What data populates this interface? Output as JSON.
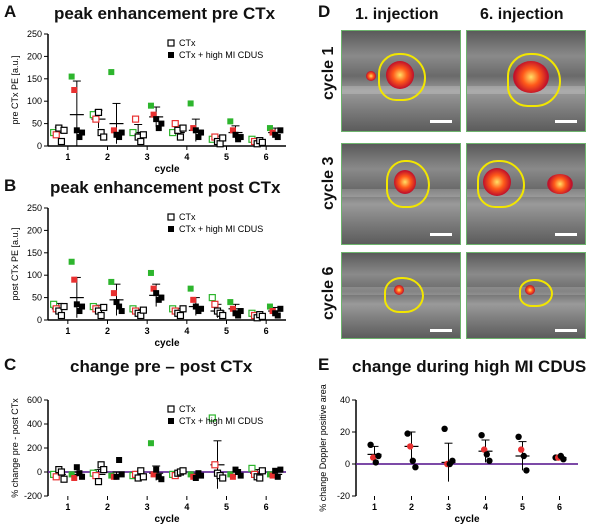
{
  "panels": {
    "A": {
      "letter": "A",
      "title": "peak enhancement pre CTx"
    },
    "B": {
      "letter": "B",
      "title": "peak enhancement post CTx"
    },
    "C": {
      "letter": "C",
      "title": "change pre – post CTx"
    },
    "D": {
      "letter": "D",
      "col1": "1. injection",
      "col2": "6. injection",
      "rows": [
        "cycle 1",
        "cycle 3",
        "cycle 6"
      ]
    },
    "E": {
      "letter": "E",
      "title": "change during high MI CDUS"
    }
  },
  "colors": {
    "green": "#2db52d",
    "red": "#e83030",
    "black": "#000000",
    "outline": "#f2e600"
  },
  "chart_data": [
    {
      "id": "A",
      "type": "scatter",
      "xlabel": "cycle",
      "ylabel": "pre CTx PE [a.u.]",
      "categories": [
        "1",
        "2",
        "3",
        "4",
        "5",
        "6"
      ],
      "ylim": [
        0,
        250
      ],
      "yticks": [
        0,
        50,
        100,
        150,
        200,
        250
      ],
      "legend": [
        "CTx",
        "CTx + high MI CDUS"
      ],
      "series": [
        {
          "name": "CTx",
          "marker": "open-square",
          "points": [
            [
              30,
              25,
              40,
              10,
              35
            ],
            [
              70,
              60,
              75,
              30,
              20
            ],
            [
              30,
              60,
              20,
              10,
              25
            ],
            [
              30,
              50,
              35,
              20,
              40
            ],
            [
              15,
              20,
              10,
              5,
              18
            ],
            [
              15,
              10,
              5,
              12,
              8
            ]
          ],
          "mean": [
            30,
            60,
            30,
            30,
            15,
            12
          ],
          "sd": [
            12,
            20,
            18,
            15,
            7,
            5
          ]
        },
        {
          "name": "CTx + high MI CDUS",
          "marker": "filled-square",
          "points": [
            [
              155,
              125,
              35,
              20,
              30
            ],
            [
              165,
              35,
              25,
              20,
              30
            ],
            [
              90,
              70,
              60,
              40,
              50
            ],
            [
              95,
              40,
              35,
              20,
              30
            ],
            [
              55,
              35,
              25,
              15,
              20
            ],
            [
              40,
              30,
              25,
              20,
              35
            ]
          ],
          "mean": [
            70,
            50,
            65,
            35,
            30,
            30
          ],
          "sd": [
            75,
            45,
            22,
            25,
            15,
            10
          ]
        }
      ]
    },
    {
      "id": "B",
      "type": "scatter",
      "xlabel": "cycle",
      "ylabel": "post CTx PE [a.u.]",
      "categories": [
        "1",
        "2",
        "3",
        "4",
        "5",
        "6"
      ],
      "ylim": [
        0,
        250
      ],
      "yticks": [
        0,
        50,
        100,
        150,
        200,
        250
      ],
      "legend": [
        "CTx",
        "CTx + high MI CDUS"
      ],
      "series": [
        {
          "name": "CTx",
          "marker": "open-square",
          "points": [
            [
              35,
              25,
              20,
              10,
              30
            ],
            [
              30,
              25,
              20,
              10,
              28
            ],
            [
              25,
              20,
              15,
              10,
              22
            ],
            [
              25,
              20,
              15,
              10,
              25
            ],
            [
              50,
              35,
              20,
              15,
              10
            ],
            [
              15,
              10,
              5,
              12,
              8
            ]
          ],
          "mean": [
            25,
            25,
            18,
            20,
            20,
            10
          ],
          "sd": [
            12,
            8,
            6,
            6,
            15,
            4
          ]
        },
        {
          "name": "CTx + high MI CDUS",
          "marker": "filled-square",
          "points": [
            [
              130,
              90,
              35,
              20,
              30
            ],
            [
              85,
              60,
              40,
              30,
              20
            ],
            [
              105,
              70,
              60,
              45,
              50
            ],
            [
              70,
              45,
              30,
              20,
              25
            ],
            [
              40,
              25,
              15,
              10,
              20
            ],
            [
              30,
              20,
              15,
              10,
              25
            ]
          ],
          "mean": [
            50,
            45,
            55,
            30,
            25,
            20
          ],
          "sd": [
            45,
            35,
            25,
            20,
            10,
            8
          ]
        }
      ]
    },
    {
      "id": "C",
      "type": "scatter",
      "xlabel": "cycle",
      "ylabel": "% change pre - post CTx",
      "categories": [
        "1",
        "2",
        "3",
        "4",
        "5",
        "6"
      ],
      "ylim": [
        -200,
        600
      ],
      "yticks": [
        -200,
        0,
        200,
        400,
        600
      ],
      "legend": [
        "CTx",
        "CTx + high MI CDUS"
      ],
      "series": [
        {
          "name": "CTx",
          "marker": "open-square",
          "points": [
            [
              -20,
              -40,
              20,
              0,
              -60
            ],
            [
              -10,
              -30,
              -80,
              60,
              20
            ],
            [
              -30,
              -20,
              -50,
              10,
              -40
            ],
            [
              -20,
              -30,
              -10,
              0,
              10
            ],
            [
              450,
              60,
              -10,
              -30,
              -50
            ],
            [
              30,
              -20,
              -40,
              -50,
              10
            ]
          ],
          "mean": [
            -20,
            -20,
            -20,
            -15,
            60,
            -10
          ],
          "sd": [
            20,
            40,
            25,
            15,
            200,
            30
          ]
        },
        {
          "name": "CTx + high MI CDUS",
          "marker": "filled-square",
          "points": [
            [
              -20,
              -50,
              40,
              -10,
              -40
            ],
            [
              -30,
              -40,
              -40,
              100,
              -20
            ],
            [
              240,
              -20,
              20,
              -40,
              -60
            ],
            [
              -20,
              -40,
              -50,
              -10,
              -30
            ],
            [
              -20,
              -40,
              20,
              0,
              -30
            ],
            [
              -20,
              -30,
              10,
              -40,
              20
            ]
          ],
          "mean": [
            -20,
            -30,
            -10,
            -30,
            -20,
            -20
          ],
          "sd": [
            20,
            30,
            60,
            20,
            20,
            20
          ]
        }
      ]
    },
    {
      "id": "E",
      "type": "scatter",
      "xlabel": "cycle",
      "ylabel": "% change Doppler positive area",
      "categories": [
        "1",
        "2",
        "3",
        "4",
        "5",
        "6"
      ],
      "ylim": [
        -20,
        40
      ],
      "yticks": [
        -20,
        0,
        20,
        40
      ],
      "series": [
        {
          "name": "",
          "marker": "filled-circle",
          "points": [
            [
              12,
              4,
              1,
              5
            ],
            [
              19,
              11,
              2,
              -2
            ],
            [
              22,
              0,
              0,
              2
            ],
            [
              18,
              9,
              6,
              2
            ],
            [
              17,
              9,
              5,
              -4
            ],
            [
              4,
              4,
              5,
              3
            ]
          ],
          "mean": [
            6,
            11,
            1,
            8,
            5,
            4
          ],
          "sd": [
            5,
            9,
            12,
            7,
            9,
            1
          ]
        }
      ]
    }
  ]
}
